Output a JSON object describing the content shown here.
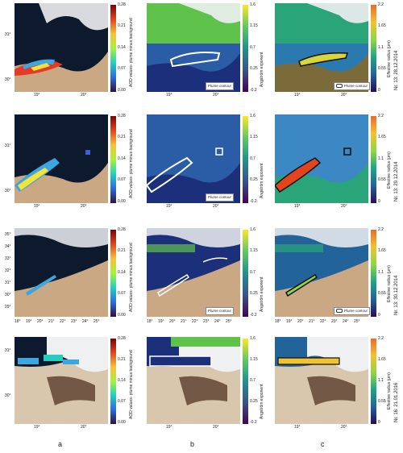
{
  "rows": [
    {
      "a_xticks": [
        "19°",
        "20°"
      ],
      "b_xticks": [
        "19°",
        "20°"
      ],
      "c_xticks": [
        "19°",
        "20°"
      ],
      "yticks": [
        "31°",
        "30°"
      ],
      "date": "Nr. 13: 28.12.2014"
    },
    {
      "a_xticks": [
        "19°",
        "20°"
      ],
      "b_xticks": [
        "19°",
        "20°"
      ],
      "c_xticks": [
        "19°",
        "20°"
      ],
      "yticks": [
        "31°",
        "30°"
      ],
      "date": "Nr. 13: 29.12.2014"
    },
    {
      "a_xticks": [
        "18°",
        "19°",
        "20°",
        "21°",
        "22°",
        "23°",
        "24°",
        "25°"
      ],
      "b_xticks": [
        "18°",
        "19°",
        "20°",
        "21°",
        "22°",
        "23°",
        "24°",
        "25°"
      ],
      "c_xticks": [
        "18°",
        "19°",
        "20°",
        "21°",
        "22°",
        "23°",
        "24°",
        "25°"
      ],
      "yticks": [
        "35°",
        "34°",
        "33°",
        "32°",
        "31°",
        "30°",
        "29°"
      ],
      "date": "Nr. 13: 30.12.2014"
    },
    {
      "a_xticks": [
        "19°",
        "20°"
      ],
      "b_xticks": [
        "19°",
        "20°"
      ],
      "c_xticks": [
        "19°",
        "20°"
      ],
      "yticks": [
        "31°",
        "30°"
      ],
      "date": "Nr. 16: 21.01.2016"
    }
  ],
  "colorbars": {
    "aod": {
      "label": "AOD values- plume minus background",
      "ticks": [
        "0.28",
        "0.21",
        "0.14",
        "0.07",
        "0.00"
      ]
    },
    "angstrom": {
      "label": "Angström exponent",
      "ticks": [
        "1.6",
        "1.15",
        "0.7",
        "0.25",
        "-0.2"
      ]
    },
    "radius": {
      "label": "Effective radius (μm)",
      "ticks": [
        "2.2",
        "1.65",
        "1.1",
        "0.55",
        "0"
      ]
    }
  },
  "legend_label": "Plume contour",
  "column_labels": [
    "a",
    "b",
    "c"
  ],
  "colors": {
    "sea": "#0d1a2e",
    "desert": "#c9a883",
    "cloud": "#eef0f2"
  }
}
